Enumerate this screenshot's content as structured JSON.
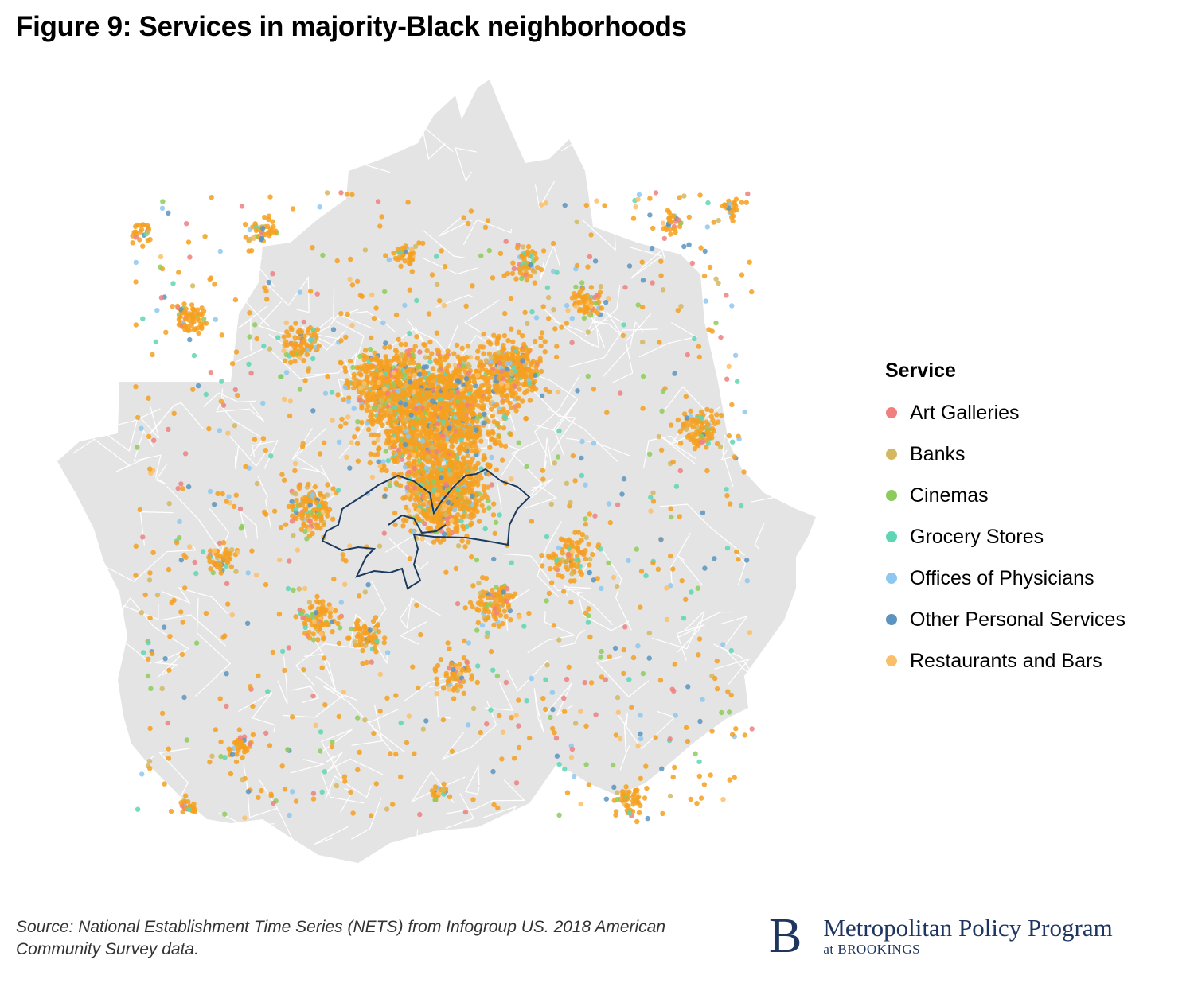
{
  "figure": {
    "title": "Figure 9: Services in majority-Black neighborhoods"
  },
  "legend": {
    "title": "Service",
    "items": [
      {
        "label": "Art Galleries",
        "color": "#f08080"
      },
      {
        "label": "Banks",
        "color": "#d4b860"
      },
      {
        "label": "Cinemas",
        "color": "#8dcc5a"
      },
      {
        "label": "Grocery Stores",
        "color": "#5ed6b4"
      },
      {
        "label": "Offices of Physicians",
        "color": "#8ec8f0"
      },
      {
        "label": "Other Personal Services",
        "color": "#5a94c0"
      },
      {
        "label": "Restaurants and Bars",
        "color": "#fbbf6a"
      }
    ]
  },
  "map": {
    "land_color": "#e4e4e4",
    "boundary_color": "#ffffff",
    "highlight_outline_color": "#1b3a5e",
    "dense_point_color": "#f6a020"
  },
  "footer": {
    "source": "Source: National Establishment Time Series (NETS) from Infogroup US. 2018 American Community Survey data.",
    "logo_letter": "B",
    "logo_name": "Metropolitan Policy Program",
    "logo_sub": "at BROOKINGS"
  }
}
